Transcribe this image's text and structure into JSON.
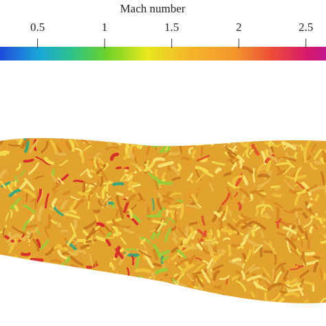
{
  "chart_data": {
    "type": "colorbar",
    "title": "Mach number",
    "clim": [
      0.22,
      2.65
    ],
    "ticks": [
      0.5,
      1,
      {
        "value": 1.5,
        "label": "1.5"
      },
      2,
      {
        "value": 2.5,
        "label": "2.5"
      }
    ]
  }
}
